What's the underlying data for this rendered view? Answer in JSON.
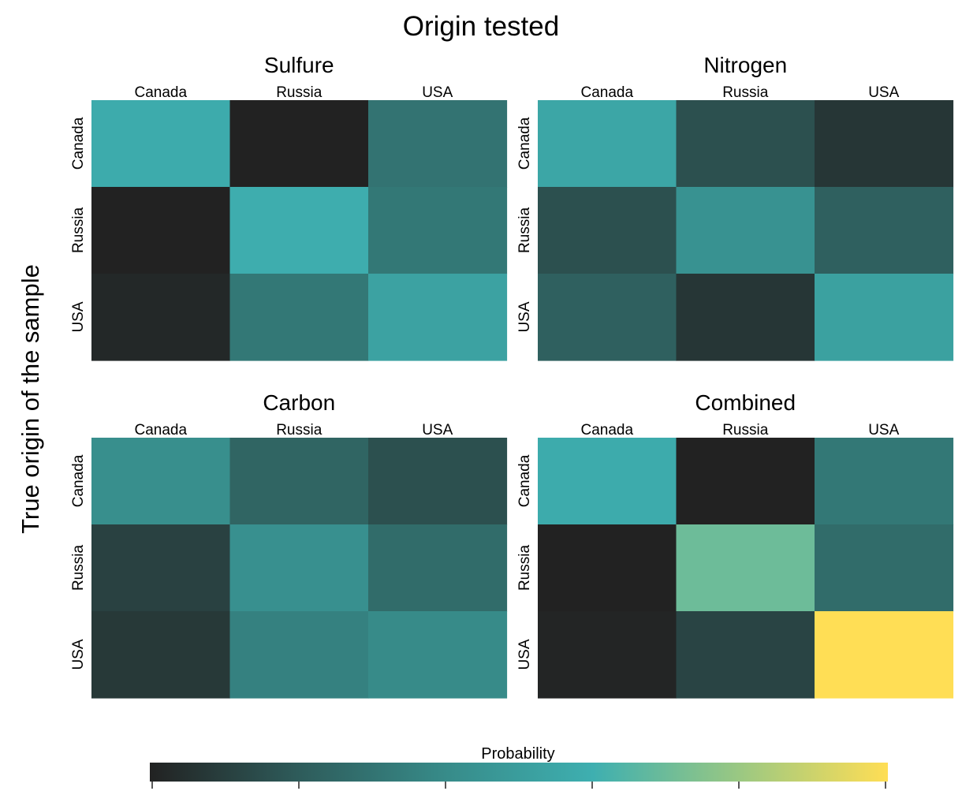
{
  "title": "Origin tested",
  "y_axis_title": "True origin of the sample",
  "legend": {
    "title": "Probability"
  },
  "colors": [
    "#222222",
    "#2e5b5a",
    "#378b89",
    "#3eafb0",
    "#9bc882",
    "#ffde55"
  ],
  "chart_data": {
    "type": "heatmap",
    "title": "Origin tested",
    "ylabel": "True origin of the sample",
    "legend_title": "Probability",
    "legend_placement": "bottom",
    "scale_range": [
      0,
      1
    ],
    "columns": [
      "Canada",
      "Russia",
      "USA"
    ],
    "rows": [
      "Canada",
      "Russia",
      "USA"
    ],
    "panels": [
      {
        "name": "Sulfure",
        "values": [
          [
            0.58,
            0.0,
            0.3
          ],
          [
            0.0,
            0.59,
            0.32
          ],
          [
            0.02,
            0.32,
            0.53
          ]
        ]
      },
      {
        "name": "Nitrogen",
        "values": [
          [
            0.55,
            0.16,
            0.07
          ],
          [
            0.16,
            0.44,
            0.22
          ],
          [
            0.22,
            0.07,
            0.52
          ]
        ]
      },
      {
        "name": "Carbon",
        "values": [
          [
            0.42,
            0.24,
            0.16
          ],
          [
            0.11,
            0.43,
            0.27
          ],
          [
            0.08,
            0.36,
            0.4
          ]
        ]
      },
      {
        "name": "Combined",
        "values": [
          [
            0.58,
            0.0,
            0.32
          ],
          [
            0.0,
            0.7,
            0.27
          ],
          [
            0.01,
            0.12,
            1.0
          ]
        ]
      }
    ]
  }
}
